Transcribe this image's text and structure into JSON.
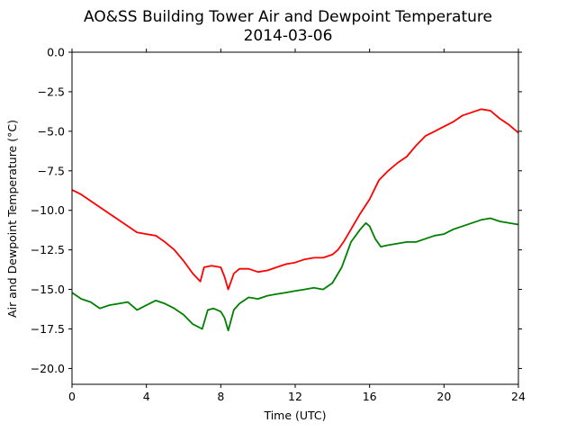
{
  "chart_data": {
    "type": "line",
    "title": "AO&SS Building Tower Air and Dewpoint Temperature",
    "subtitle": "2014-03-06",
    "xlabel": "Time (UTC)",
    "ylabel": "Air and Dewpoint Temperature (°C)",
    "xlim": [
      0,
      24
    ],
    "ylim": [
      -21,
      0
    ],
    "xticks": [
      0,
      4,
      8,
      12,
      16,
      20,
      24
    ],
    "yticks": [
      0.0,
      -2.5,
      -5.0,
      -7.5,
      -10.0,
      -12.5,
      -15.0,
      -17.5,
      -20.0
    ],
    "ytick_labels": [
      "0.0",
      "−2.5",
      "−5.0",
      "−7.5",
      "−10.0",
      "−12.5",
      "−15.0",
      "−17.5",
      "−20.0"
    ],
    "grid": false,
    "series": [
      {
        "color": "#ff0000",
        "x": [
          0,
          0.5,
          1,
          1.5,
          2,
          2.5,
          3,
          3.5,
          4,
          4.5,
          5,
          5.5,
          6,
          6.5,
          6.9,
          7.1,
          7.5,
          8,
          8.2,
          8.4,
          8.7,
          9,
          9.5,
          10,
          10.5,
          11,
          11.5,
          12,
          12.5,
          13,
          13.5,
          14,
          14.3,
          14.6,
          15,
          15.5,
          16,
          16.5,
          17,
          17.5,
          18,
          18.5,
          19,
          19.5,
          20,
          20.5,
          21,
          21.5,
          22,
          22.5,
          23,
          23.5,
          24
        ],
        "y": [
          -8.7,
          -9.0,
          -9.4,
          -9.8,
          -10.2,
          -10.6,
          -11.0,
          -11.4,
          -11.5,
          -11.6,
          -12.0,
          -12.5,
          -13.2,
          -14.0,
          -14.5,
          -13.6,
          -13.5,
          -13.6,
          -14.2,
          -15.0,
          -14.0,
          -13.7,
          -13.7,
          -13.9,
          -13.8,
          -13.6,
          -13.4,
          -13.3,
          -13.1,
          -13.0,
          -13.0,
          -12.8,
          -12.5,
          -12.0,
          -11.2,
          -10.2,
          -9.3,
          -8.1,
          -7.5,
          -7.0,
          -6.6,
          -5.9,
          -5.3,
          -5.0,
          -4.7,
          -4.4,
          -4.0,
          -3.8,
          -3.6,
          -3.7,
          -4.2,
          -4.6,
          -5.1
        ]
      },
      {
        "color": "#008000",
        "x": [
          0,
          0.5,
          1,
          1.5,
          2,
          2.5,
          3,
          3.5,
          4,
          4.5,
          5,
          5.5,
          6,
          6.5,
          7,
          7.3,
          7.6,
          8,
          8.2,
          8.4,
          8.7,
          9,
          9.5,
          10,
          10.5,
          11,
          11.5,
          12,
          12.5,
          13,
          13.5,
          14,
          14.5,
          15,
          15.5,
          15.8,
          16,
          16.3,
          16.6,
          17,
          17.5,
          18,
          18.5,
          19,
          19.5,
          20,
          20.5,
          21,
          21.5,
          22,
          22.5,
          23,
          23.5,
          24
        ],
        "y": [
          -15.2,
          -15.6,
          -15.8,
          -16.2,
          -16.0,
          -15.9,
          -15.8,
          -16.3,
          -16.0,
          -15.7,
          -15.9,
          -16.2,
          -16.6,
          -17.2,
          -17.5,
          -16.3,
          -16.2,
          -16.4,
          -16.8,
          -17.6,
          -16.3,
          -15.9,
          -15.5,
          -15.6,
          -15.4,
          -15.3,
          -15.2,
          -15.1,
          -15.0,
          -14.9,
          -15.0,
          -14.6,
          -13.6,
          -12.0,
          -11.2,
          -10.8,
          -11.0,
          -11.8,
          -12.3,
          -12.2,
          -12.1,
          -12.0,
          -12.0,
          -11.8,
          -11.6,
          -11.5,
          -11.2,
          -11.0,
          -10.8,
          -10.6,
          -10.5,
          -10.7,
          -10.8,
          -10.9
        ]
      }
    ]
  }
}
